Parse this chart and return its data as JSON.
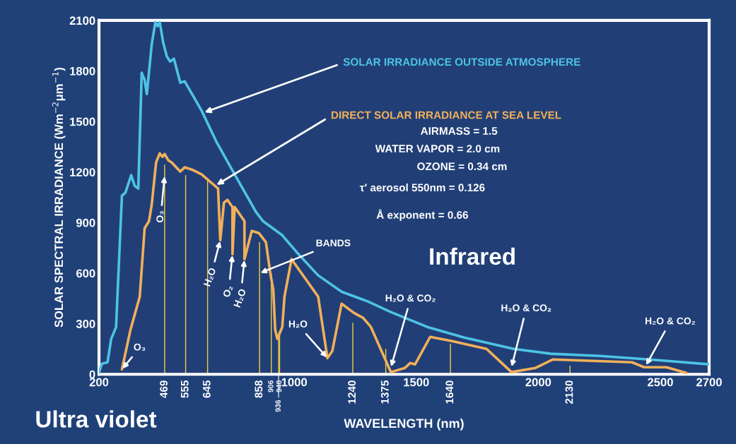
{
  "chart_data": {
    "type": "line",
    "xlabel": "WAVELENGTH (nm)",
    "ylabel": "SOLAR SPECTRAL IRRADIANCE (Wm$^{−2}$μm$^{−1}$)",
    "xlim": [
      200,
      2700
    ],
    "ylim": [
      0,
      2100
    ],
    "xticks": [
      200,
      1000,
      1500,
      2000,
      2500,
      2700
    ],
    "grid": false,
    "legend": false,
    "yticks": [
      0,
      300,
      600,
      900,
      1200,
      1500,
      1800,
      2100
    ],
    "series": [
      {
        "name": "SOLAR IRRADIANCE OUTSIDE ATMOSPHERE",
        "color": "#4ec3e6",
        "x": [
          200,
          212,
          235,
          250,
          270,
          279,
          294,
          308,
          332,
          346,
          361,
          375,
          387,
          396,
          416,
          431,
          440,
          449,
          463,
          478,
          492,
          507,
          533,
          551,
          621,
          680,
          756,
          843,
          872,
          951,
          1010,
          1098,
          1194,
          1302,
          1396,
          1545,
          1697,
          1899,
          2051,
          2253,
          2454,
          2700
        ],
        "values": [
          10,
          63,
          71,
          210,
          281,
          574,
          1060,
          1077,
          1182,
          1119,
          1102,
          1789,
          1747,
          1663,
          1957,
          2090,
          2066,
          2090,
          1969,
          1886,
          1856,
          1873,
          1730,
          1739,
          1563,
          1383,
          1186,
          964,
          909,
          825,
          725,
          587,
          490,
          432,
          369,
          281,
          218,
          151,
          122,
          109,
          88,
          59
        ]
      },
      {
        "name": "DIRECT SOLAR IRRADIANCE AT SEA LEVEL",
        "color": "#f2b05a",
        "x": [
          294,
          329,
          367,
          387,
          405,
          416,
          434,
          449,
          460,
          469,
          484,
          498,
          533,
          551,
          580,
          621,
          688,
          697,
          712,
          726,
          747,
          747,
          756,
          796,
          796,
          826,
          855,
          884,
          902,
          914,
          922,
          931,
          951,
          960,
          989,
          1098,
          1136,
          1156,
          1194,
          1244,
          1282,
          1314,
          1396,
          1454,
          1475,
          1495,
          1557,
          1647,
          1788,
          1890,
          1989,
          2060,
          2384,
          2434,
          2525,
          2606
        ],
        "values": [
          29,
          264,
          461,
          867,
          909,
          1006,
          1257,
          1311,
          1291,
          1307,
          1270,
          1257,
          1203,
          1228,
          1215,
          1186,
          1102,
          796,
          1018,
          1035,
          993,
          712,
          993,
          909,
          683,
          851,
          838,
          784,
          599,
          503,
          264,
          210,
          281,
          461,
          683,
          461,
          96,
          138,
          419,
          365,
          335,
          281,
          13,
          38,
          67,
          59,
          222,
          197,
          151,
          13,
          38,
          88,
          71,
          42,
          42,
          8
        ]
      },
      {
        "color": "#f0d040",
        "type": "bar",
        "x": [
          469,
          555,
          645,
          858,
          906,
          936,
          940,
          1240,
          1375,
          1640,
          2130
        ],
        "values": [
          1244,
          1182,
          1152,
          784,
          600,
          210,
          260,
          306,
          151,
          180,
          50
        ]
      }
    ],
    "annotations": [
      {
        "text": "469",
        "x": 469,
        "y": 0
      },
      {
        "text": "555",
        "x": 555,
        "y": 0
      },
      {
        "text": "645",
        "x": 645,
        "y": 0
      },
      {
        "text": "858",
        "x": 858,
        "y": 0
      },
      {
        "text": "906",
        "x": 906,
        "y": 0
      },
      {
        "text": "936",
        "x": 936,
        "y": 0
      },
      {
        "text": "940",
        "x": 940,
        "y": 0
      },
      {
        "text": "1240",
        "x": 1240,
        "y": 0
      },
      {
        "text": "1375",
        "x": 1375,
        "y": 0
      },
      {
        "text": "1640",
        "x": 1640,
        "y": 0
      },
      {
        "text": "2130",
        "x": 2130,
        "y": 0
      },
      {
        "text": "O₃",
        "x": 294,
        "y": 29
      },
      {
        "text": "O₃",
        "x": 469,
        "y": 1180
      },
      {
        "text": "H₂O",
        "x": 697,
        "y": 796
      },
      {
        "text": "O₂",
        "x": 747,
        "y": 712
      },
      {
        "text": "H₂O",
        "x": 796,
        "y": 683
      },
      {
        "text": "BANDS",
        "x": 858,
        "y": 600
      },
      {
        "text": "H₂O",
        "x": 1136,
        "y": 96
      },
      {
        "text": "H₂O & CO₂",
        "x": 1396,
        "y": 40
      },
      {
        "text": "H₂O & CO₂",
        "x": 1890,
        "y": 40
      },
      {
        "text": "H₂O & CO₂",
        "x": 2440,
        "y": 50
      },
      "AIRMASS = 1.5",
      "WATER VAPOR = 2.0 cm",
      "OZONE = 0.34 cm",
      "τ′ aerosol 550nm = 0.126",
      "Å exponent = 0.66",
      "Infrared",
      "Ultra violet"
    ]
  }
}
